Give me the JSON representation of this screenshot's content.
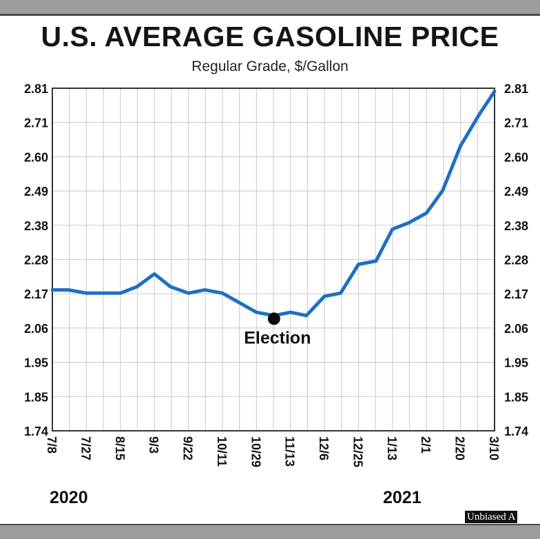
{
  "chart_data": {
    "type": "line",
    "title": "U.S. AVERAGE GASOLINE PRICE",
    "subtitle": "Regular Grade, $/Gallon",
    "x_tick_labels": [
      "7/8",
      "7/27",
      "8/15",
      "9/3",
      "9/22",
      "10/11",
      "10/29",
      "11/13",
      "12/6",
      "12/25",
      "1/13",
      "2/1",
      "2/20",
      "3/10"
    ],
    "year_labels": [
      "2020",
      "2021"
    ],
    "y_ticks": [
      "1.74",
      "1.85",
      "1.95",
      "2.06",
      "2.17",
      "2.28",
      "2.38",
      "2.49",
      "2.60",
      "2.71",
      "2.81"
    ],
    "ylim": [
      1.74,
      2.81
    ],
    "grid": true,
    "series": [
      {
        "color": "#1f6fc4",
        "x": [
          "7/8",
          "7/17",
          "7/27",
          "8/5",
          "8/15",
          "8/24",
          "9/3",
          "9/12",
          "9/22",
          "10/1",
          "10/11",
          "10/20",
          "10/29",
          "11/6",
          "11/13",
          "11/24",
          "12/6",
          "12/15",
          "12/25",
          "1/4",
          "1/13",
          "1/22",
          "2/1",
          "2/10",
          "2/20",
          "3/1",
          "3/10"
        ],
        "values": [
          2.18,
          2.18,
          2.17,
          2.17,
          2.17,
          2.19,
          2.23,
          2.19,
          2.17,
          2.18,
          2.17,
          2.14,
          2.11,
          2.1,
          2.11,
          2.1,
          2.16,
          2.17,
          2.26,
          2.27,
          2.37,
          2.39,
          2.42,
          2.49,
          2.63,
          2.73,
          2.8
        ]
      }
    ],
    "annotations": [
      {
        "label": "Election",
        "x": "11/6",
        "y": 2.09
      }
    ]
  },
  "watermark": "Unbiased A"
}
